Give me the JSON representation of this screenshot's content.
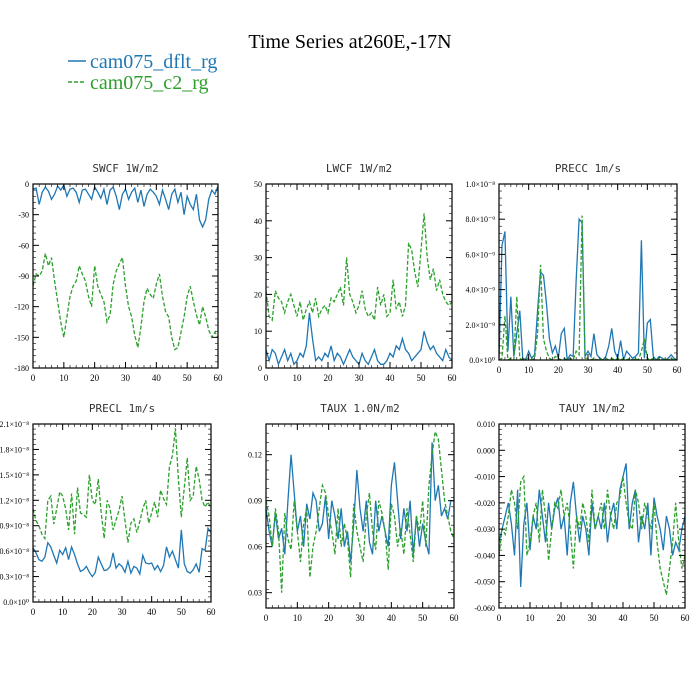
{
  "title": "Time Series at260E,-17N",
  "legend": [
    {
      "name": "cam075_dflt_rg",
      "color": "#1f77b4",
      "dash": "solid"
    },
    {
      "name": "cam075_c2_rg",
      "color": "#2ca02c",
      "dash": "dashed"
    }
  ],
  "chart_data": [
    {
      "type": "line",
      "title": "SWCF   1W/m2",
      "xlim": [
        0,
        60
      ],
      "ylim": [
        -180,
        0
      ],
      "xticks": [
        0,
        10,
        20,
        30,
        40,
        50,
        60
      ],
      "yticks": [
        -180,
        -150,
        -120,
        -90,
        -60,
        -30,
        0
      ],
      "ytick_labels": [
        "-180",
        "-150",
        "-120",
        "-90",
        "-60",
        "-30",
        "0"
      ],
      "series": [
        {
          "name": "cam075_dflt_rg",
          "values": [
            -5,
            -4,
            -20,
            -8,
            -3,
            -7,
            -15,
            -10,
            -2,
            -6,
            -1,
            -12,
            -5,
            -4,
            -8,
            -18,
            -6,
            -5,
            -10,
            -15,
            -3,
            -8,
            -14,
            -5,
            -20,
            -6,
            -3,
            -12,
            -25,
            -10,
            -5,
            -15,
            -8,
            -4,
            -18,
            -6,
            -22,
            -10,
            -5,
            -8,
            -12,
            -20,
            -6,
            -15,
            -25,
            -10,
            -5,
            -18,
            -8,
            -30,
            -12,
            -20,
            -25,
            -10,
            -35,
            -42,
            -35,
            -15,
            -6,
            -10,
            -2
          ]
        },
        {
          "name": "cam075_c2_rg",
          "values": [
            -100,
            -88,
            -90,
            -85,
            -68,
            -80,
            -72,
            -95,
            -115,
            -135,
            -150,
            -130,
            -110,
            -100,
            -95,
            -80,
            -88,
            -95,
            -110,
            -120,
            -80,
            -100,
            -108,
            -115,
            -135,
            -128,
            -98,
            -85,
            -78,
            -72,
            -100,
            -120,
            -130,
            -148,
            -160,
            -140,
            -115,
            -102,
            -108,
            -112,
            -98,
            -88,
            -110,
            -125,
            -130,
            -150,
            -162,
            -160,
            -145,
            -130,
            -110,
            -100,
            -115,
            -128,
            -138,
            -120,
            -130,
            -143,
            -150,
            -145,
            -150
          ]
        }
      ]
    },
    {
      "type": "line",
      "title": "LWCF   1W/m2",
      "xlim": [
        0,
        60
      ],
      "ylim": [
        0,
        50
      ],
      "xticks": [
        0,
        10,
        20,
        30,
        40,
        50,
        60
      ],
      "yticks": [
        0,
        10,
        20,
        30,
        40,
        50
      ],
      "ytick_labels": [
        "0",
        "10",
        "20",
        "30",
        "40",
        "50"
      ],
      "series": [
        {
          "name": "cam075_dflt_rg",
          "values": [
            5,
            2,
            5,
            4,
            1,
            3,
            5,
            2,
            4,
            1,
            2,
            4,
            3,
            6,
            15,
            8,
            2,
            3,
            2,
            4,
            3,
            6,
            2,
            4,
            3,
            1,
            3,
            5,
            3,
            2,
            1,
            4,
            2,
            1,
            3,
            5,
            2,
            1,
            1,
            2,
            4,
            3,
            6,
            5,
            8,
            5,
            4,
            2,
            3,
            4,
            5,
            10,
            7,
            5,
            6,
            4,
            3,
            2,
            5,
            3,
            2
          ]
        },
        {
          "name": "cam075_c2_rg",
          "values": [
            21,
            14,
            13,
            21,
            19,
            18,
            15,
            18,
            20,
            17,
            14,
            18,
            13,
            16,
            18,
            15,
            19,
            14,
            16,
            17,
            15,
            19,
            18,
            20,
            22,
            17,
            30,
            20,
            18,
            15,
            17,
            21,
            16,
            14,
            15,
            13,
            22,
            17,
            20,
            14,
            15,
            24,
            16,
            18,
            14,
            17,
            34,
            32,
            26,
            22,
            32,
            42,
            30,
            24,
            27,
            21,
            24,
            20,
            18,
            17,
            18
          ]
        }
      ]
    },
    {
      "type": "line",
      "title": "PRECC   1m/s",
      "xlim": [
        0,
        60
      ],
      "ylim": [
        0,
        1e-08
      ],
      "xticks": [
        0,
        10,
        20,
        30,
        40,
        50,
        60
      ],
      "yticks": [
        0,
        2e-09,
        4e-09,
        6e-09,
        8e-09,
        1e-08
      ],
      "ytick_labels": [
        "0.0×10⁰",
        "2.0×10⁻⁹",
        "4.0×10⁻⁹",
        "6.0×10⁻⁹",
        "8.0×10⁻⁹",
        "1.0×10⁻⁸"
      ],
      "series": [
        {
          "name": "cam075_dflt_rg",
          "values": [
            1e-10,
            6.5e-09,
            7.3e-09,
            5e-10,
            3.6e-09,
            2e-10,
            1.5e-09,
            2.8e-09,
            1e-10,
            0,
            5e-10,
            1e-10,
            3e-10,
            2.8e-09,
            5e-09,
            4.8e-09,
            3.2e-09,
            1.2e-09,
            4e-10,
            8e-10,
            1e-10,
            1.5e-09,
            1.8e-09,
            0,
            3e-10,
            2e-10,
            4.5e-09,
            8e-09,
            7.8e-09,
            2e-10,
            5e-10,
            2e-10,
            1.5e-09,
            3e-10,
            1e-10,
            0,
            2e-10,
            8e-10,
            1.8e-09,
            5e-10,
            1e-10,
            1.1e-09,
            0,
            5e-10,
            3e-10,
            1e-10,
            2e-10,
            4e-10,
            6.8e-09,
            1e-10,
            2.1e-09,
            2.3e-09,
            2e-10,
            0,
            2e-10,
            1e-10,
            0,
            1e-10,
            3e-10,
            1e-10,
            0
          ]
        },
        {
          "name": "cam075_c2_rg",
          "values": [
            0,
            1e-10,
            2.5e-09,
            0,
            1e-10,
            0,
            3.6e-09,
            1e-10,
            0,
            1e-10,
            1e-10,
            0,
            1e-10,
            1.5e-09,
            5.4e-09,
            1.2e-09,
            5e-10,
            1e-10,
            0,
            2e-10,
            1e-10,
            0,
            1e-10,
            0,
            1e-10,
            0,
            5e-10,
            3e-10,
            8.2e-09,
            1e-10,
            1e-10,
            0,
            1e-10,
            0,
            1e-10,
            0,
            1e-10,
            0,
            1e-10,
            0,
            1e-10,
            0,
            1e-10,
            0,
            1e-10,
            0,
            1e-10,
            0,
            5e-10,
            1.2e-09,
            1e-10,
            0,
            1e-10,
            0,
            1e-10,
            0,
            1e-10,
            0,
            1e-10,
            0,
            1e-10
          ]
        }
      ]
    },
    {
      "type": "line",
      "title": "PRECL   1m/s",
      "xlim": [
        0,
        60
      ],
      "ylim": [
        0,
        2.1e-08
      ],
      "xticks": [
        0,
        10,
        20,
        30,
        40,
        50,
        60
      ],
      "yticks": [
        0,
        3e-09,
        6e-09,
        9e-09,
        1.2e-08,
        1.5e-08,
        1.8e-08,
        2.1e-08
      ],
      "ytick_labels": [
        "0.0×10⁰",
        "0.3×10⁻⁸",
        "0.6×10⁻⁸",
        "0.9×10⁻⁸",
        "1.2×10⁻⁸",
        "1.5×10⁻⁸",
        "1.8×10⁻⁸",
        "2.1×10⁻⁸"
      ],
      "series": [
        {
          "name": "cam075_dflt_rg",
          "values": [
            6.4e-09,
            5.8e-09,
            5e-09,
            4.8e-09,
            5.3e-09,
            7e-09,
            6.5e-09,
            5.5e-09,
            4.6e-09,
            6.1e-09,
            5.6e-09,
            6.4e-09,
            5e-09,
            6.5e-09,
            5.6e-09,
            4.5e-09,
            3.6e-09,
            3.8e-09,
            4.2e-09,
            3.5e-09,
            3e-09,
            3.5e-09,
            5.3e-09,
            4.5e-09,
            3.7e-09,
            3.8e-09,
            4.2e-09,
            5.8e-09,
            4e-09,
            4.5e-09,
            4.2e-09,
            3.5e-09,
            4.8e-09,
            3.4e-09,
            4.2e-09,
            4e-09,
            3.3e-09,
            5.5e-09,
            4.6e-09,
            4.5e-09,
            4.6e-09,
            3.8e-09,
            4.3e-09,
            3.6e-09,
            4.3e-09,
            6.5e-09,
            5.3e-09,
            6e-09,
            5e-09,
            4e-09,
            8.5e-09,
            4.5e-09,
            3.6e-09,
            3.4e-09,
            3.8e-09,
            4.5e-09,
            3.5e-09,
            6.3e-09,
            6.1e-09,
            8.7e-09,
            8.2e-09
          ]
        },
        {
          "name": "cam075_c2_rg",
          "values": [
            1.1e-08,
            9.6e-09,
            9e-09,
            8e-09,
            7.5e-09,
            1.2e-08,
            1.25e-08,
            9.2e-09,
            1.1e-08,
            1.3e-08,
            1.25e-08,
            1.1e-08,
            8.5e-09,
            1.28e-08,
            8e-09,
            1.35e-08,
            1.05e-08,
            1.03e-08,
            1e-08,
            1.5e-08,
            1.2e-08,
            1.15e-08,
            1.45e-08,
            1.05e-08,
            7.5e-09,
            1.2e-08,
            1.1e-08,
            8.5e-09,
            9.7e-09,
            1.08e-08,
            1.25e-08,
            9.6e-09,
            7e-09,
            9.3e-09,
            9.8e-09,
            8.2e-09,
            9.5e-09,
            1.1e-08,
            1.2e-08,
            9.3e-09,
            1.05e-08,
            1.18e-08,
            1e-08,
            1.32e-08,
            1.22e-08,
            1.15e-08,
            1.6e-08,
            1.73e-08,
            2.05e-08,
            1.45e-08,
            1e-08,
            1.35e-08,
            1.7e-08,
            1.2e-08,
            1.25e-08,
            1.6e-08,
            1.45e-08,
            1.2e-08,
            1.12e-08,
            1.18e-08,
            1.1e-08
          ]
        }
      ]
    },
    {
      "type": "line",
      "title": "TAUX   1.0N/m2",
      "xlim": [
        0,
        60
      ],
      "ylim": [
        0.02,
        0.14
      ],
      "xticks": [
        0,
        10,
        20,
        30,
        40,
        50,
        60
      ],
      "yticks": [
        0.03,
        0.06,
        0.09,
        0.12
      ],
      "ytick_labels": [
        "0.03",
        "0.06",
        "0.09",
        "0.12"
      ],
      "series": [
        {
          "name": "cam075_dflt_rg",
          "values": [
            0.085,
            0.07,
            0.06,
            0.082,
            0.065,
            0.072,
            0.055,
            0.09,
            0.12,
            0.095,
            0.07,
            0.08,
            0.06,
            0.088,
            0.078,
            0.095,
            0.09,
            0.07,
            0.075,
            0.093,
            0.065,
            0.09,
            0.08,
            0.065,
            0.085,
            0.06,
            0.07,
            0.05,
            0.075,
            0.11,
            0.085,
            0.07,
            0.09,
            0.063,
            0.055,
            0.09,
            0.07,
            0.08,
            0.07,
            0.06,
            0.1,
            0.115,
            0.09,
            0.065,
            0.085,
            0.07,
            0.09,
            0.055,
            0.08,
            0.06,
            0.075,
            0.063,
            0.055,
            0.128,
            0.09,
            0.1,
            0.08,
            0.085,
            0.078,
            0.09,
            0.09
          ]
        },
        {
          "name": "cam075_c2_rg",
          "values": [
            0.09,
            0.08,
            0.06,
            0.085,
            0.07,
            0.03,
            0.082,
            0.065,
            0.058,
            0.09,
            0.07,
            0.05,
            0.075,
            0.085,
            0.04,
            0.06,
            0.07,
            0.085,
            0.1,
            0.095,
            0.08,
            0.07,
            0.055,
            0.085,
            0.06,
            0.075,
            0.065,
            0.04,
            0.088,
            0.07,
            0.06,
            0.05,
            0.08,
            0.095,
            0.07,
            0.058,
            0.09,
            0.082,
            0.07,
            0.045,
            0.088,
            0.08,
            0.06,
            0.072,
            0.055,
            0.085,
            0.068,
            0.05,
            0.08,
            0.07,
            0.09,
            0.06,
            0.1,
            0.12,
            0.135,
            0.13,
            0.11,
            0.09,
            0.08,
            0.07,
            0.065
          ]
        }
      ]
    },
    {
      "type": "line",
      "title": "TAUY   1N/m2",
      "xlim": [
        0,
        60
      ],
      "ylim": [
        -0.06,
        0.01
      ],
      "xticks": [
        0,
        10,
        20,
        30,
        40,
        50,
        60
      ],
      "yticks": [
        -0.06,
        -0.05,
        -0.04,
        -0.03,
        -0.02,
        -0.01,
        0.0,
        0.01
      ],
      "ytick_labels": [
        "-0.060",
        "-0.050",
        "-0.040",
        "-0.030",
        "-0.020",
        "-0.010",
        "0.000",
        "0.010"
      ],
      "series": [
        {
          "name": "cam075_dflt_rg",
          "values": [
            -0.035,
            -0.03,
            -0.025,
            -0.02,
            -0.028,
            -0.04,
            -0.015,
            -0.052,
            -0.028,
            -0.02,
            -0.038,
            -0.025,
            -0.03,
            -0.015,
            -0.025,
            -0.035,
            -0.02,
            -0.03,
            -0.022,
            -0.018,
            -0.03,
            -0.025,
            -0.04,
            -0.02,
            -0.012,
            -0.025,
            -0.035,
            -0.025,
            -0.03,
            -0.04,
            -0.02,
            -0.03,
            -0.025,
            -0.03,
            -0.02,
            -0.035,
            -0.025,
            -0.02,
            -0.03,
            -0.015,
            -0.01,
            -0.005,
            -0.03,
            -0.02,
            -0.015,
            -0.035,
            -0.025,
            -0.03,
            -0.02,
            -0.04,
            -0.018,
            -0.025,
            -0.03,
            -0.038,
            -0.025,
            -0.03,
            -0.04,
            -0.035,
            -0.038,
            -0.03,
            -0.025
          ]
        },
        {
          "name": "cam075_c2_rg",
          "values": [
            -0.04,
            -0.03,
            -0.032,
            -0.025,
            -0.015,
            -0.02,
            -0.03,
            -0.012,
            -0.01,
            -0.04,
            -0.035,
            -0.025,
            -0.02,
            -0.035,
            -0.015,
            -0.025,
            -0.042,
            -0.03,
            -0.02,
            -0.022,
            -0.015,
            -0.025,
            -0.02,
            -0.03,
            -0.045,
            -0.025,
            -0.03,
            -0.02,
            -0.025,
            -0.035,
            -0.015,
            -0.03,
            -0.025,
            -0.02,
            -0.03,
            -0.015,
            -0.025,
            -0.03,
            -0.02,
            -0.018,
            -0.01,
            -0.02,
            -0.028,
            -0.03,
            -0.015,
            -0.02,
            -0.03,
            -0.02,
            -0.025,
            -0.03,
            -0.02,
            -0.035,
            -0.045,
            -0.05,
            -0.055,
            -0.045,
            -0.035,
            -0.02,
            -0.035,
            -0.045,
            -0.04
          ]
        }
      ]
    }
  ]
}
